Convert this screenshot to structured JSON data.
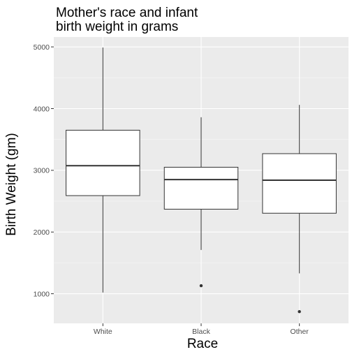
{
  "chart_data": {
    "type": "boxplot",
    "title_lines": [
      "Mother's race and infant",
      "birth weight in grams"
    ],
    "xlabel": "Race",
    "ylabel": "Birth Weight (gm)",
    "categories": [
      "White",
      "Black",
      "Other"
    ],
    "ylim": [
      520,
      5160
    ],
    "yticks": [
      1000,
      2000,
      3000,
      4000,
      5000
    ],
    "boxes": [
      {
        "category": "White",
        "whisker_low": 1020,
        "q1": 2590,
        "median": 3075,
        "q3": 3650,
        "whisker_high": 4990,
        "outliers": []
      },
      {
        "category": "Black",
        "whisker_low": 1710,
        "q1": 2370,
        "median": 2850,
        "q3": 3050,
        "whisker_high": 3860,
        "outliers": [
          1130
        ]
      },
      {
        "category": "Other",
        "whisker_low": 1330,
        "q1": 2305,
        "median": 2840,
        "q3": 3270,
        "whisker_high": 4060,
        "outliers": [
          710
        ]
      }
    ],
    "grid": true,
    "legend": "none",
    "colors": {
      "panel": "#ebebeb",
      "grid_major": "#ffffff",
      "grid_minor": "#f5f5f5",
      "box_fill": "#ffffff",
      "stroke": "#333333",
      "tick_text": "#4d4d4d"
    }
  }
}
